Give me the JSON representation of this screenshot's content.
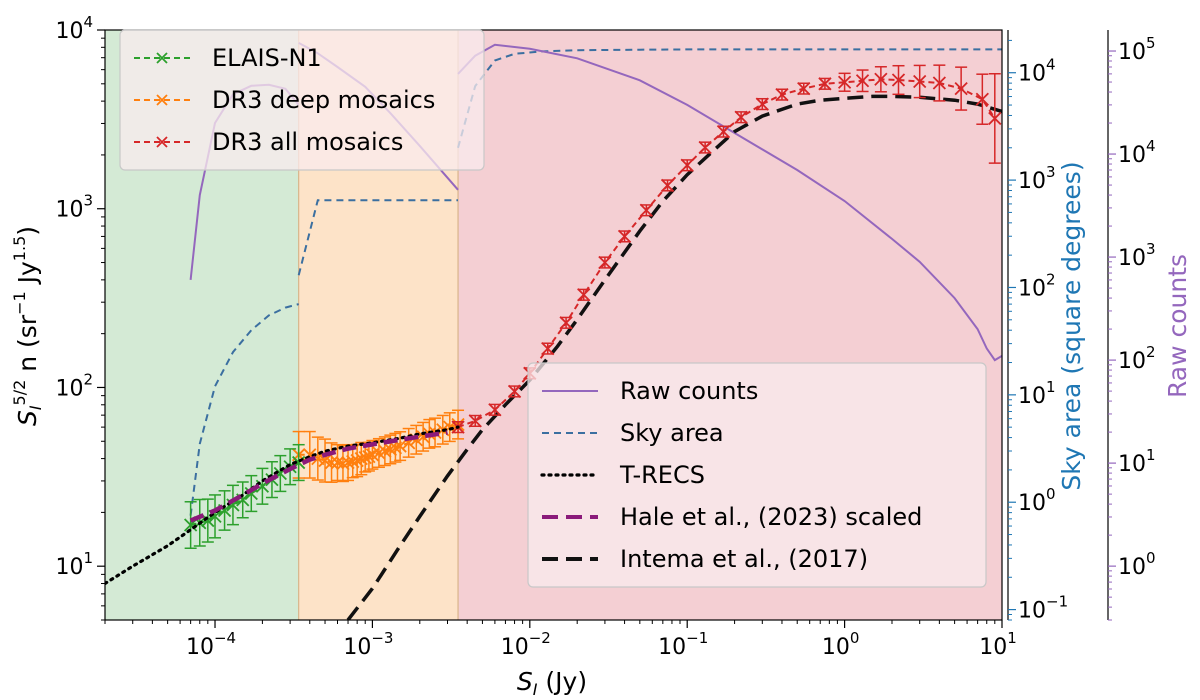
{
  "chart_data": {
    "type": "line",
    "xlabel": {
      "main": "S",
      "sub": "I",
      "unit": " (Jy)"
    },
    "ylabel": {
      "pre": "S",
      "sub": "I",
      "sup": "5/2",
      "post": " n (sr",
      "sup2": "−1",
      "mid": " Jy",
      "sup3": "1.5",
      "end": ")"
    },
    "y2label": "Sky area (square degrees)",
    "y3label": "Raw counts",
    "xlim": [
      2e-05,
      10
    ],
    "ylim": [
      5,
      10000
    ],
    "y2lim": [
      0.08,
      25000
    ],
    "y3lim": [
      0.3,
      160000
    ],
    "x_ticks": [
      {
        "value": 0.0001,
        "base": "10",
        "exp": "−4"
      },
      {
        "value": 0.001,
        "base": "10",
        "exp": "−3"
      },
      {
        "value": 0.01,
        "base": "10",
        "exp": "−2"
      },
      {
        "value": 0.1,
        "base": "10",
        "exp": "−1"
      },
      {
        "value": 1,
        "base": "10",
        "exp": "0"
      },
      {
        "value": 10,
        "base": "10",
        "exp": "1"
      }
    ],
    "y_ticks": [
      {
        "value": 10,
        "base": "10",
        "exp": "1"
      },
      {
        "value": 100,
        "base": "10",
        "exp": "2"
      },
      {
        "value": 1000,
        "base": "10",
        "exp": "3"
      },
      {
        "value": 10000,
        "base": "10",
        "exp": "4"
      }
    ],
    "y2_ticks": [
      {
        "value": 0.1,
        "base": "10",
        "exp": "−1"
      },
      {
        "value": 1,
        "base": "10",
        "exp": "0"
      },
      {
        "value": 10,
        "base": "10",
        "exp": "1"
      },
      {
        "value": 100,
        "base": "10",
        "exp": "2"
      },
      {
        "value": 1000,
        "base": "10",
        "exp": "3"
      },
      {
        "value": 10000,
        "base": "10",
        "exp": "4"
      }
    ],
    "y3_ticks": [
      {
        "value": 1,
        "base": "10",
        "exp": "0"
      },
      {
        "value": 10,
        "base": "10",
        "exp": "1"
      },
      {
        "value": 100,
        "base": "10",
        "exp": "2"
      },
      {
        "value": 1000,
        "base": "10",
        "exp": "3"
      },
      {
        "value": 10000,
        "base": "10",
        "exp": "4"
      },
      {
        "value": 100000,
        "base": "10",
        "exp": "5"
      }
    ],
    "regions": [
      {
        "x0": 2e-05,
        "x1": 0.00034,
        "color": "#d4ead5"
      },
      {
        "x0": 0.00034,
        "x1": 0.0035,
        "color": "#fde3c8"
      },
      {
        "x0": 0.0035,
        "x1": 10,
        "color": "#f4cfd3"
      }
    ],
    "legend_left": [
      {
        "name": "ELAIS-N1",
        "color": "#2ca02c",
        "style": "dash-x"
      },
      {
        "name": "DR3 deep mosaics",
        "color": "#ff7f0e",
        "style": "dash-x"
      },
      {
        "name": "DR3 all mosaics",
        "color": "#d62728",
        "style": "dash-x"
      }
    ],
    "legend_right": [
      {
        "name": "Raw counts",
        "color": "#9467bd",
        "style": "solid"
      },
      {
        "name": "Sky area",
        "color": "#3b6fa0",
        "style": "dashed"
      },
      {
        "name": "T-RECS",
        "color": "#000000",
        "style": "dotted"
      },
      {
        "name": "Hale et al., (2023) scaled",
        "color": "#8b1a7a",
        "style": "thick-dash"
      },
      {
        "name": "Intema et al., (2017)",
        "color": "#111111",
        "style": "thick-dash"
      }
    ],
    "series": [
      {
        "name": "ELAIS-N1",
        "axis": "y1",
        "color": "#2ca02c",
        "x": [
          7e-05,
          8e-05,
          9e-05,
          0.0001,
          0.000115,
          0.00013,
          0.00015,
          0.00017,
          0.0002,
          0.00023,
          0.00026,
          0.0003,
          0.00034
        ],
        "y": [
          17,
          17.5,
          18,
          19,
          20.5,
          22,
          23.5,
          25.5,
          28,
          30.5,
          33,
          36,
          38
        ],
        "err": [
          0.13,
          0.13,
          0.12,
          0.12,
          0.11,
          0.11,
          0.1,
          0.1,
          0.1,
          0.1,
          0.1,
          0.1,
          0.1
        ]
      },
      {
        "name": "DR3 deep mosaics",
        "axis": "y1",
        "color": "#ff7f0e",
        "x": [
          0.00034,
          0.0004,
          0.00045,
          0.0005,
          0.00055,
          0.0006,
          0.00065,
          0.0007,
          0.00075,
          0.0008,
          0.00085,
          0.0009,
          0.00095,
          0.001,
          0.0011,
          0.0012,
          0.0013,
          0.0014,
          0.0015,
          0.0017,
          0.0019,
          0.0021,
          0.0023,
          0.0025,
          0.0028,
          0.0031,
          0.0035
        ],
        "y": [
          42,
          42,
          40,
          39,
          38,
          38,
          37.5,
          38,
          38.5,
          39,
          40,
          40.5,
          41,
          42,
          43,
          44,
          45,
          46,
          47,
          49,
          51,
          53,
          55,
          56,
          58,
          60,
          62
        ],
        "err": [
          0.13,
          0.13,
          0.12,
          0.12,
          0.11,
          0.1,
          0.1,
          0.1,
          0.09,
          0.09,
          0.09,
          0.08,
          0.08,
          0.08,
          0.08,
          0.08,
          0.08,
          0.08,
          0.08,
          0.08,
          0.08,
          0.08,
          0.08,
          0.08,
          0.08,
          0.08,
          0.08
        ]
      },
      {
        "name": "DR3 all mosaics",
        "axis": "y1",
        "color": "#d62728",
        "x": [
          0.0035,
          0.0045,
          0.006,
          0.008,
          0.01,
          0.013,
          0.017,
          0.022,
          0.03,
          0.04,
          0.055,
          0.075,
          0.1,
          0.13,
          0.17,
          0.22,
          0.3,
          0.4,
          0.55,
          0.75,
          1.0,
          1.3,
          1.7,
          2.2,
          3.0,
          4.0,
          5.5,
          7.5,
          9.0
        ],
        "y": [
          60,
          65,
          75,
          95,
          120,
          165,
          230,
          330,
          500,
          700,
          980,
          1350,
          1750,
          2200,
          2700,
          3250,
          3850,
          4350,
          4700,
          5000,
          5100,
          5200,
          5300,
          5250,
          5150,
          5050,
          4700,
          4100,
          3200
        ],
        "err": [
          0.03,
          0.03,
          0.03,
          0.03,
          0.03,
          0.03,
          0.03,
          0.03,
          0.03,
          0.03,
          0.03,
          0.03,
          0.03,
          0.03,
          0.03,
          0.03,
          0.03,
          0.03,
          0.03,
          0.03,
          0.05,
          0.06,
          0.07,
          0.08,
          0.09,
          0.1,
          0.12,
          0.14,
          0.25
        ]
      },
      {
        "name": "T-RECS",
        "axis": "y1",
        "color": "#000000",
        "x": [
          2e-05,
          3e-05,
          5e-05,
          7e-05,
          0.0001,
          0.00015,
          0.0002,
          0.0003,
          0.0004,
          0.0005,
          0.0007,
          0.001,
          0.0015,
          0.002,
          0.003,
          0.0035
        ],
        "y": [
          8,
          10,
          13,
          16,
          20,
          25,
          30,
          37,
          41,
          44,
          47,
          49,
          52,
          55,
          58,
          60
        ]
      },
      {
        "name": "Hale et al., (2023) scaled",
        "axis": "y1",
        "color": "#8b1a7a",
        "x": [
          7e-05,
          0.0001,
          0.00015,
          0.0002,
          0.0003,
          0.0004,
          0.0005,
          0.0007,
          0.001,
          0.0015,
          0.002,
          0.003
        ],
        "y": [
          18,
          20.5,
          25,
          29,
          35,
          39.5,
          42,
          45.5,
          48,
          51,
          53,
          56
        ]
      },
      {
        "name": "Intema et al., (2017)",
        "axis": "y1",
        "color": "#111111",
        "x": [
          0.0007,
          0.001,
          0.0015,
          0.002,
          0.003,
          0.004,
          0.005,
          0.007,
          0.01,
          0.015,
          0.02,
          0.03,
          0.05,
          0.07,
          0.1,
          0.15,
          0.2,
          0.3,
          0.5,
          0.7,
          1.0,
          1.5,
          2.0,
          3.0,
          5.0,
          7.0,
          10.0
        ],
        "y": [
          5,
          7.5,
          13,
          19,
          32,
          45,
          58,
          80,
          110,
          170,
          240,
          400,
          750,
          1100,
          1550,
          2150,
          2700,
          3300,
          3850,
          4050,
          4150,
          4250,
          4250,
          4200,
          4050,
          3850,
          3500
        ]
      },
      {
        "name": "Sky area",
        "axis": "y2",
        "color": "#3b6fa0",
        "segments": [
          {
            "x": [
              7e-05,
              8e-05,
              0.0001,
              0.00013,
              0.00017,
              0.00022,
              0.00028,
              0.00034
            ],
            "y": [
              0.75,
              3.5,
              12,
              25,
              40,
              55,
              65,
              70
            ]
          },
          {
            "x": [
              0.00034,
              0.00045,
              0.0007,
              0.001,
              0.002,
              0.0035
            ],
            "y": [
              130,
              650,
              650,
              650,
              650,
              650
            ]
          },
          {
            "x": [
              0.0035,
              0.0045,
              0.006,
              0.008,
              0.012,
              0.02,
              0.05,
              0.1,
              0.5,
              1,
              5,
              10
            ],
            "y": [
              2000,
              7500,
              13000,
              15000,
              15800,
              16200,
              16400,
              16500,
              16500,
              16500,
              16500,
              16500
            ]
          }
        ]
      },
      {
        "name": "Raw counts",
        "axis": "y3",
        "color": "#9467bd",
        "segments": [
          {
            "x": [
              7e-05,
              8e-05,
              0.0001,
              0.00013,
              0.00017,
              0.00022,
              0.00028,
              0.00034
            ],
            "y": [
              600,
              4000,
              20000,
              38000,
              46000,
              47000,
              43000,
              30000
            ]
          },
          {
            "x": [
              0.00034,
              0.00045,
              0.0006,
              0.0009,
              0.0013,
              0.002,
              0.0035
            ],
            "y": [
              120000,
              95000,
              70000,
              45000,
              25000,
              12000,
              4500
            ]
          },
          {
            "x": [
              0.0035,
              0.0045,
              0.006,
              0.01,
              0.02,
              0.05,
              0.1,
              0.2,
              0.5,
              1,
              2,
              3,
              5,
              7,
              8,
              9,
              10
            ],
            "y": [
              60000,
              90000,
              115000,
              105000,
              85000,
              52000,
              30000,
              16000,
              7000,
              3500,
              1500,
              900,
              400,
              200,
              130,
              100,
              110
            ]
          }
        ]
      }
    ]
  }
}
